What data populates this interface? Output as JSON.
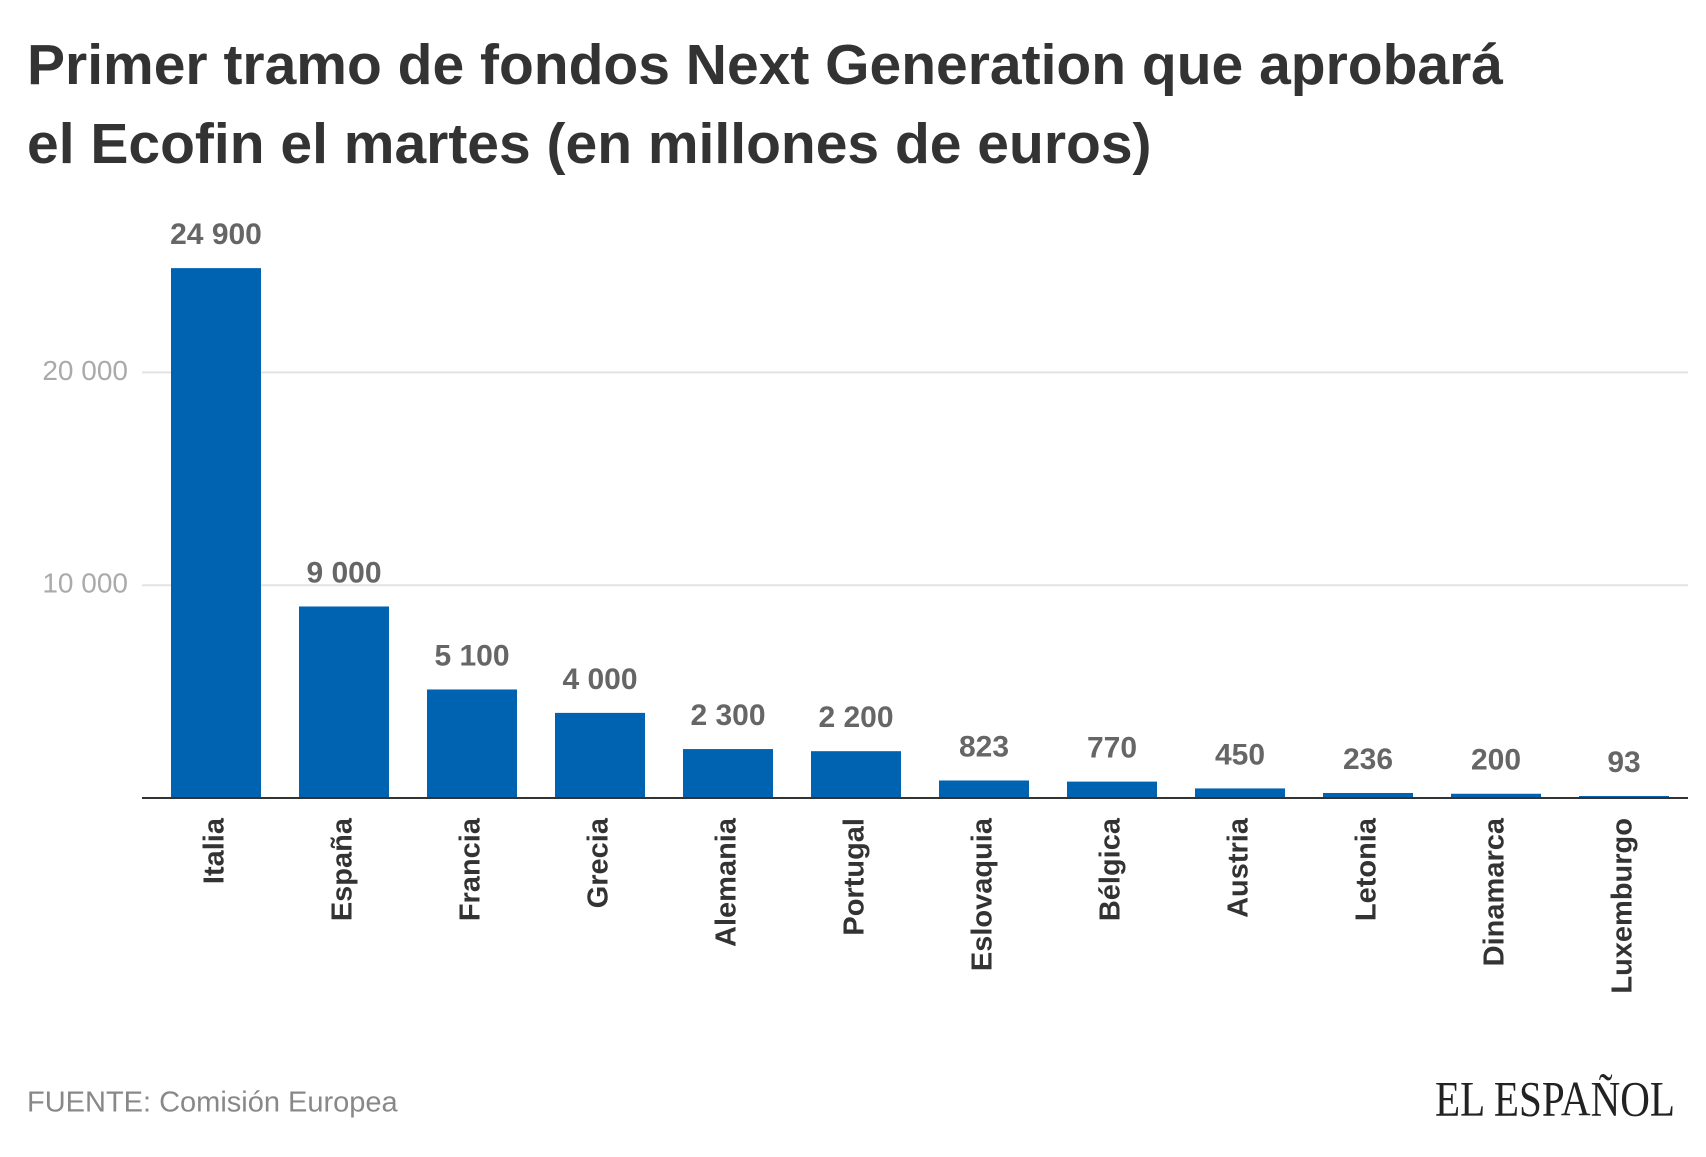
{
  "chart_data": {
    "type": "bar",
    "title": "Primer tramo de fondos Next Generation que aprobará el Ecofin el martes (en millones de euros)",
    "title_lines": [
      "Primer tramo de fondos Next Generation que aprobará",
      "el Ecofin el martes (en millones de euros)"
    ],
    "categories": [
      "Italia",
      "España",
      "Francia",
      "Grecia",
      "Alemania",
      "Portugal",
      "Eslovaquia",
      "Bélgica",
      "Austria",
      "Letonia",
      "Dinamarca",
      "Luxemburgo"
    ],
    "values": [
      24900,
      9000,
      5100,
      4000,
      2300,
      2200,
      823,
      770,
      450,
      236,
      200,
      93
    ],
    "value_labels": [
      "24 900",
      "9 000",
      "5 100",
      "4 000",
      "2 300",
      "2 200",
      "823",
      "770",
      "450",
      "236",
      "200",
      "93"
    ],
    "color": "#0063b1",
    "ylim": [
      0,
      25000
    ],
    "yticks": [
      {
        "value": 10000,
        "label": "10 000"
      },
      {
        "value": 20000,
        "label": "20 000"
      }
    ],
    "grid": true,
    "source": "FUENTE: Comisión Europea",
    "logo": "EL ESPAÑOL"
  }
}
